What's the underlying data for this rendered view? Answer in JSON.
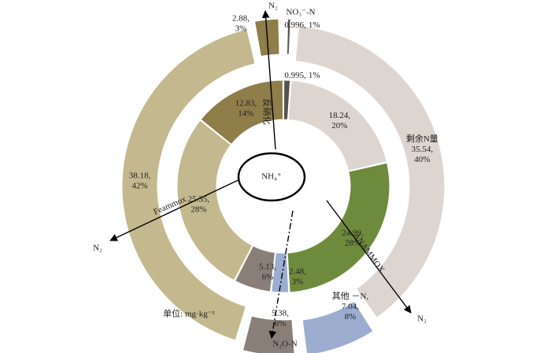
{
  "chart_data": {
    "type": "donut",
    "center_label": "NH₄⁺",
    "unit_label": "单位: mg·kg⁻¹",
    "inner": {
      "values": [
        0.995,
        18.24,
        24.99,
        2.48,
        5.13,
        25.35,
        12.83
      ],
      "value_labels": [
        "0.995,",
        "18.24,",
        "24.99,",
        "2.48,",
        "5.13,",
        "25.35,",
        "12.83,"
      ],
      "percents": [
        1,
        20,
        28,
        3,
        6,
        28,
        14
      ],
      "percent_labels": [
        "1%",
        "20%",
        "28%",
        "3%",
        "6%",
        "28%",
        "14%"
      ],
      "colors": [
        "#55524f",
        "#ddd5d0",
        "#6e8b3d",
        "#9cadcf",
        "#8a7f78",
        "#c4b88e",
        "#8f7d4a"
      ]
    },
    "outer": {
      "names": [
        "NO₃⁻-N",
        "剩余N量",
        "其他 －N,",
        "N₂O-N",
        null,
        null
      ],
      "values": [
        0.996,
        35.54,
        7.04,
        5.38,
        38.18,
        2.88
      ],
      "value_labels": [
        "0.996,",
        "35.54,",
        "7.04,",
        "5.38,",
        "38.18,",
        "2.88,"
      ],
      "percents": [
        1,
        40,
        8,
        6,
        42,
        3
      ],
      "percent_labels": [
        "1%",
        "40%",
        "8%",
        "6%",
        "42%",
        "3%"
      ],
      "colors": [
        "#55524f",
        "#ddd5d0",
        "#9cadcf",
        "#8a7f78",
        "#c4b88e",
        "#8f7d4a"
      ]
    },
    "pathways": [
      {
        "label": "反硝化",
        "product": "N₂"
      },
      {
        "label": "Feammox",
        "product": "N₂"
      },
      {
        "label": "ANAMMOX",
        "product": "N₂"
      }
    ]
  }
}
